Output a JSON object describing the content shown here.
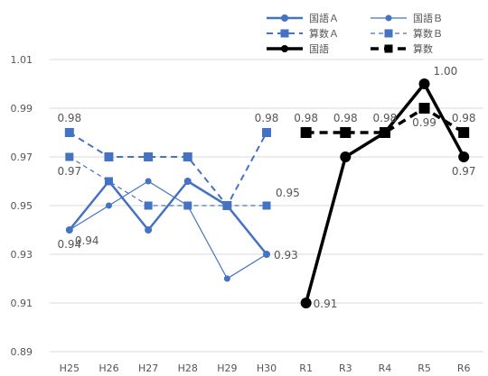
{
  "chart_data": {
    "type": "line",
    "title": "",
    "xlabel": "",
    "ylabel": "",
    "categories": [
      "H25",
      "H26",
      "H27",
      "H28",
      "H29",
      "H30",
      "R1",
      "R3",
      "R4",
      "R5",
      "R6"
    ],
    "ylim": [
      0.89,
      1.01
    ],
    "yticks": [
      "0.89",
      "0.91",
      "0.93",
      "0.95",
      "0.97",
      "0.99",
      "1.01"
    ],
    "grid": true,
    "legend_position": "top-right",
    "series": [
      {
        "name": "国語Ａ",
        "color": "#4472c4",
        "style": "solid-circle-thick",
        "values": [
          0.94,
          0.96,
          0.94,
          0.96,
          0.95,
          0.93,
          null,
          null,
          null,
          null,
          null
        ]
      },
      {
        "name": "国語Ｂ",
        "color": "#4472c4",
        "style": "solid-circle-thin",
        "values": [
          0.94,
          0.95,
          0.96,
          0.95,
          0.92,
          0.93,
          null,
          null,
          null,
          null,
          null
        ]
      },
      {
        "name": "算数Ａ",
        "color": "#4472c4",
        "style": "dashed-square-thick",
        "values": [
          0.98,
          0.97,
          0.97,
          0.97,
          0.95,
          0.98,
          null,
          null,
          null,
          null,
          null
        ]
      },
      {
        "name": "算数Ｂ",
        "color": "#4472c4",
        "style": "dashed-square-thin",
        "values": [
          0.97,
          0.96,
          0.95,
          0.95,
          0.95,
          0.95,
          null,
          null,
          null,
          null,
          null
        ]
      },
      {
        "name": "国語",
        "color": "#000000",
        "style": "solid-circle-bold",
        "values": [
          null,
          null,
          null,
          null,
          null,
          null,
          0.91,
          0.97,
          0.98,
          1.0,
          0.97
        ]
      },
      {
        "name": "算数",
        "color": "#000000",
        "style": "dashed-square-bold",
        "values": [
          null,
          null,
          null,
          null,
          null,
          null,
          0.98,
          0.98,
          0.98,
          0.99,
          0.98
        ]
      }
    ],
    "data_labels": [
      {
        "text": "0.98",
        "series": "算数Ａ",
        "category": "H25",
        "pos": "above"
      },
      {
        "text": "0.97",
        "series": "算数Ｂ",
        "category": "H25",
        "pos": "below"
      },
      {
        "text": "0.94",
        "series": "国語Ａ",
        "category": "H25",
        "pos": "below-right"
      },
      {
        "text": "0.94",
        "series": "国語Ｂ",
        "category": "H25",
        "pos": "below"
      },
      {
        "text": "0.98",
        "series": "算数Ａ",
        "category": "H30",
        "pos": "above"
      },
      {
        "text": "0.95",
        "series": "算数Ｂ",
        "category": "H30",
        "pos": "above-right"
      },
      {
        "text": "0.93",
        "series": "国語Ａ",
        "category": "H30",
        "pos": "right"
      },
      {
        "text": "0.98",
        "series": "算数",
        "category": "R1",
        "pos": "above"
      },
      {
        "text": "0.91",
        "series": "国語",
        "category": "R1",
        "pos": "right"
      },
      {
        "text": "0.98",
        "series": "算数",
        "category": "R3",
        "pos": "above"
      },
      {
        "text": "0.98",
        "series": "算数",
        "category": "R4",
        "pos": "above"
      },
      {
        "text": "1.00",
        "series": "国語",
        "category": "R5",
        "pos": "above-right"
      },
      {
        "text": "0.99",
        "series": "算数",
        "category": "R5",
        "pos": "below"
      },
      {
        "text": "0.98",
        "series": "算数",
        "category": "R6",
        "pos": "above"
      },
      {
        "text": "0.97",
        "series": "国語",
        "category": "R6",
        "pos": "below"
      }
    ]
  }
}
